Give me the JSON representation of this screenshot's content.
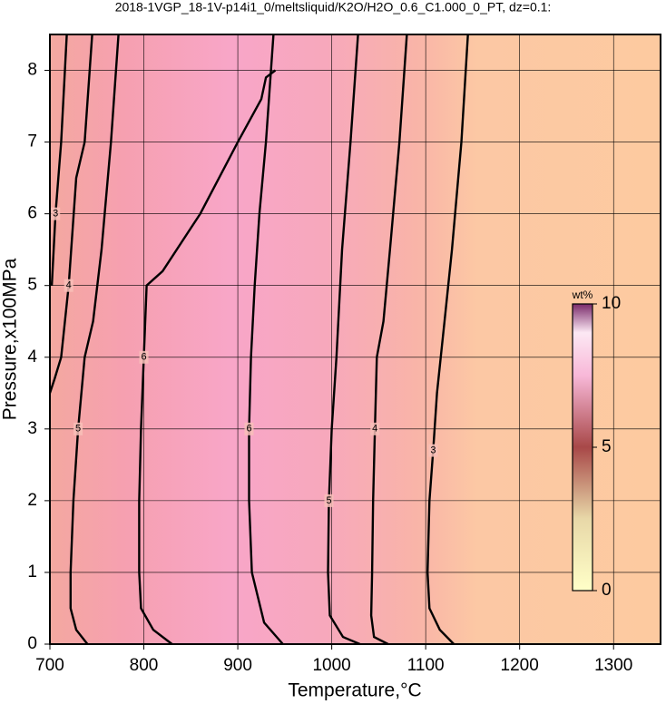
{
  "chart_data": {
    "type": "contour",
    "title": "2018-1VGP_18-1V-p14i1_0/meltsliquid/K2O/H2O_0.6_C1.000_0_PT, dz=0.1:",
    "xlabel": "Temperature,°C",
    "ylabel": "Pressure,x100MPa",
    "xlim": [
      700,
      1350
    ],
    "ylim": [
      0,
      8.5
    ],
    "xticks": [
      700,
      800,
      900,
      1000,
      1100,
      1200,
      1300
    ],
    "yticks": [
      0,
      1,
      2,
      3,
      4,
      5,
      6,
      7,
      8
    ],
    "grid": true,
    "color": "#000000",
    "contours": [
      {
        "level": 3,
        "x": [
          718,
          712,
          706,
          702
        ],
        "y": [
          8.5,
          7,
          6,
          5
        ]
      },
      {
        "level": 4,
        "x": [
          745,
          737,
          728,
          720,
          712,
          705,
          700
        ],
        "y": [
          8.5,
          7,
          6.5,
          5,
          4,
          3.7,
          3.5
        ]
      },
      {
        "level": 5,
        "x": [
          773,
          765,
          755,
          746,
          737,
          730,
          725,
          722,
          722,
          728,
          740
        ],
        "y": [
          8.5,
          7,
          5.5,
          4.5,
          4,
          3,
          2,
          1,
          0.5,
          0.2,
          0
        ]
      },
      {
        "level": 6,
        "x": [
          940,
          930,
          925,
          900,
          860,
          820,
          803,
          800,
          797,
          795,
          795,
          797,
          810,
          830
        ],
        "y": [
          8,
          7.9,
          7.6,
          7,
          6,
          5.2,
          5,
          4,
          3,
          2,
          1,
          0.5,
          0.2,
          0
        ]
      },
      {
        "level": 6,
        "x": [
          938,
          930,
          923,
          918,
          914,
          912,
          912,
          915,
          928,
          948
        ],
        "y": [
          8.5,
          7,
          6,
          5,
          4,
          3,
          2,
          1,
          0.3,
          0
        ]
      },
      {
        "level": 5,
        "x": [
          1028,
          1020,
          1011,
          1005,
          1000,
          997,
          996,
          998,
          1012,
          1030
        ],
        "y": [
          8.5,
          7,
          5.5,
          4,
          3,
          2,
          1,
          0.4,
          0.1,
          0
        ]
      },
      {
        "level": 4,
        "x": [
          1080,
          1072,
          1062,
          1055,
          1048,
          1046,
          1044,
          1043,
          1042,
          1045,
          1060
        ],
        "y": [
          8.5,
          7,
          5.5,
          4.5,
          4,
          3,
          2,
          1,
          0.4,
          0.1,
          0
        ]
      },
      {
        "level": 3,
        "x": [
          1145,
          1138,
          1128,
          1120,
          1112,
          1108,
          1104,
          1102,
          1104,
          1115,
          1130
        ],
        "y": [
          8.5,
          7,
          5.5,
          4.5,
          3.5,
          2.7,
          2,
          1,
          0.5,
          0.2,
          0
        ]
      }
    ],
    "colorbar": {
      "label": "wt%",
      "lim": [
        0,
        10
      ],
      "ticks": [
        0,
        5,
        10
      ]
    }
  }
}
